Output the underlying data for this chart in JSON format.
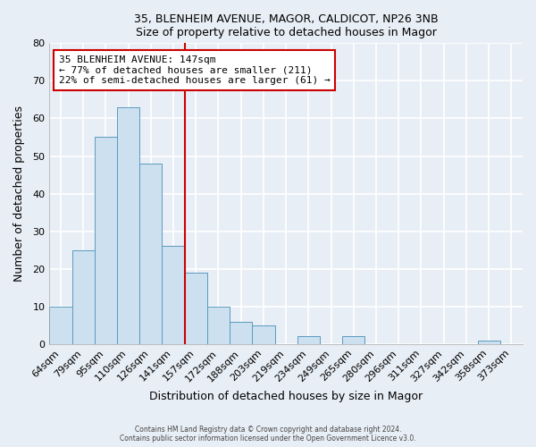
{
  "title1": "35, BLENHEIM AVENUE, MAGOR, CALDICOT, NP26 3NB",
  "title2": "Size of property relative to detached houses in Magor",
  "xlabel": "Distribution of detached houses by size in Magor",
  "ylabel": "Number of detached properties",
  "categories": [
    "64sqm",
    "79sqm",
    "95sqm",
    "110sqm",
    "126sqm",
    "141sqm",
    "157sqm",
    "172sqm",
    "188sqm",
    "203sqm",
    "219sqm",
    "234sqm",
    "249sqm",
    "265sqm",
    "280sqm",
    "296sqm",
    "311sqm",
    "327sqm",
    "342sqm",
    "358sqm",
    "373sqm"
  ],
  "values": [
    10,
    25,
    55,
    63,
    48,
    26,
    19,
    10,
    6,
    5,
    0,
    2,
    0,
    2,
    0,
    0,
    0,
    0,
    0,
    1,
    0
  ],
  "bar_color": "#cce0f0",
  "bar_edge_color": "#5a9abf",
  "vline_color": "#cc0000",
  "vline_x": 6.0,
  "ylim": [
    0,
    80
  ],
  "yticks": [
    0,
    10,
    20,
    30,
    40,
    50,
    60,
    70,
    80
  ],
  "annotation_title": "35 BLENHEIM AVENUE: 147sqm",
  "annotation_line1": "← 77% of detached houses are smaller (211)",
  "annotation_line2": "22% of semi-detached houses are larger (61) →",
  "annotation_box_color": "#ffffff",
  "annotation_box_edge": "#cc0000",
  "footer1": "Contains HM Land Registry data © Crown copyright and database right 2024.",
  "footer2": "Contains public sector information licensed under the Open Government Licence v3.0.",
  "background_color": "#e8eef5",
  "grid_color": "#ffffff"
}
